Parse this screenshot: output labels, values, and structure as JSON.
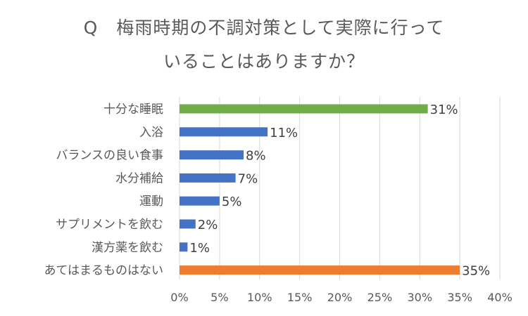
{
  "title_line1": "Q　梅雨時期の不調対策として実際に行って",
  "title_line2": "いることはありますか？",
  "chart_data": {
    "type": "bar",
    "orientation": "horizontal",
    "title": "Q　梅雨時期の不調対策として実際に行っていることはありますか？",
    "categories": [
      "十分な睡眠",
      "入浴",
      "バランスの良い食事",
      "水分補給",
      "運動",
      "サプリメントを飲む",
      "漢方薬を飲む",
      "あてはまるものはない"
    ],
    "values": [
      31,
      11,
      8,
      7,
      5,
      2,
      1,
      35
    ],
    "value_labels": [
      "31%",
      "11%",
      "8%",
      "7%",
      "5%",
      "2%",
      "1%",
      "35%"
    ],
    "bar_colors": [
      "#70ad47",
      "#4472c4",
      "#4472c4",
      "#4472c4",
      "#4472c4",
      "#4472c4",
      "#4472c4",
      "#ed7d31"
    ],
    "xlim": [
      0,
      40
    ],
    "x_ticks": [
      "0%",
      "5%",
      "10%",
      "15%",
      "20%",
      "25%",
      "30%",
      "35%",
      "40%"
    ],
    "grid": true,
    "legend": "none"
  }
}
